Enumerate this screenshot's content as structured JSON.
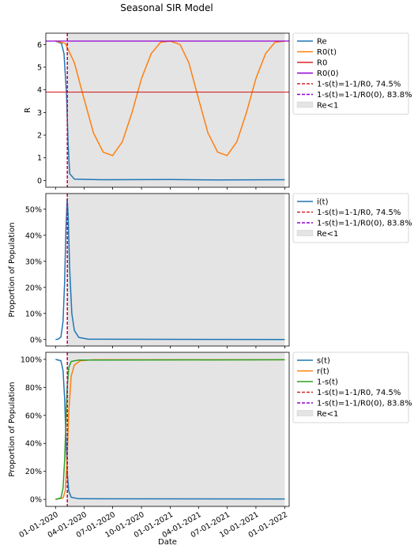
{
  "title": "Seasonal SIR Model",
  "xlabel": "Date",
  "x_ticks": [
    "01-01-2020",
    "04-01-2020",
    "07-01-2020",
    "10-01-2020",
    "01-01-2021",
    "04-01-2021",
    "07-01-2021",
    "10-01-2021",
    "01-01-2022"
  ],
  "colors": {
    "blue": "#1f77b4",
    "orange": "#ff7f0e",
    "green": "#2ca02c",
    "red": "#d62728",
    "darkred": "#8b0000",
    "purple": "#9400d3",
    "shade": "#e4e4e4"
  },
  "chart_data": [
    {
      "type": "line",
      "ylabel": "R",
      "yticks": [
        "0",
        "1",
        "2",
        "3",
        "4",
        "5",
        "6"
      ],
      "ylim": [
        -0.3,
        6.5
      ],
      "x_range": [
        "2019-12-01",
        "2022-01-15"
      ],
      "series": [
        {
          "name": "Re",
          "points": [
            [
              "2020-01-01",
              6.15
            ],
            [
              "2020-01-20",
              6.05
            ],
            [
              "2020-01-28",
              5.6
            ],
            [
              "2020-02-05",
              3.8
            ],
            [
              "2020-02-10",
              1.6
            ],
            [
              "2020-02-15",
              0.3
            ],
            [
              "2020-03-01",
              0.06
            ],
            [
              "2020-06-01",
              0.03
            ],
            [
              "2021-01-01",
              0.04
            ],
            [
              "2021-06-01",
              0.02
            ],
            [
              "2022-01-01",
              0.03
            ]
          ]
        },
        {
          "name": "R0(t)",
          "points": [
            [
              "2020-01-01",
              6.15
            ],
            [
              "2020-02-01",
              6.05
            ],
            [
              "2020-03-01",
              5.2
            ],
            [
              "2020-04-01",
              3.6
            ],
            [
              "2020-05-01",
              2.1
            ],
            [
              "2020-06-01",
              1.25
            ],
            [
              "2020-07-01",
              1.1
            ],
            [
              "2020-08-01",
              1.7
            ],
            [
              "2020-09-01",
              3.0
            ],
            [
              "2020-10-01",
              4.5
            ],
            [
              "2020-11-01",
              5.6
            ],
            [
              "2020-12-01",
              6.1
            ],
            [
              "2021-01-01",
              6.15
            ],
            [
              "2021-02-01",
              6.0
            ],
            [
              "2021-03-01",
              5.2
            ],
            [
              "2021-04-01",
              3.6
            ],
            [
              "2021-05-01",
              2.1
            ],
            [
              "2021-06-01",
              1.25
            ],
            [
              "2021-07-01",
              1.1
            ],
            [
              "2021-08-01",
              1.7
            ],
            [
              "2021-09-01",
              3.0
            ],
            [
              "2021-10-01",
              4.5
            ],
            [
              "2021-11-01",
              5.6
            ],
            [
              "2021-12-01",
              6.1
            ],
            [
              "2022-01-01",
              6.15
            ]
          ]
        },
        {
          "name": "R0",
          "hline": 3.9
        },
        {
          "name": "R0(0)",
          "hline": 6.15
        },
        {
          "name": "1-s(t)=1-1/R0, 74.5%",
          "vline": "2020-02-07"
        },
        {
          "name": "1-s(t)=1-1/R0(0), 83.8%",
          "vline": "2020-02-08"
        },
        {
          "name": "Re<1",
          "span": [
            "2020-02-08",
            "2022-01-01"
          ]
        }
      ],
      "legend_position": "outside right"
    },
    {
      "type": "line",
      "ylabel": "Proportion of Population",
      "yticks": [
        "0%",
        "10%",
        "20%",
        "30%",
        "40%",
        "50%"
      ],
      "ylim": [
        -0.025,
        0.56
      ],
      "x_range": [
        "2019-12-01",
        "2022-01-15"
      ],
      "series": [
        {
          "name": "i(t)",
          "points": [
            [
              "2020-01-01",
              0.0
            ],
            [
              "2020-01-10",
              0.002
            ],
            [
              "2020-01-18",
              0.01
            ],
            [
              "2020-01-25",
              0.07
            ],
            [
              "2020-01-30",
              0.22
            ],
            [
              "2020-02-03",
              0.42
            ],
            [
              "2020-02-07",
              0.54
            ],
            [
              "2020-02-10",
              0.48
            ],
            [
              "2020-02-15",
              0.27
            ],
            [
              "2020-02-22",
              0.1
            ],
            [
              "2020-03-01",
              0.035
            ],
            [
              "2020-03-15",
              0.008
            ],
            [
              "2020-04-15",
              0.001
            ],
            [
              "2022-01-01",
              0.0
            ]
          ]
        },
        {
          "name": "1-s(t)=1-1/R0, 74.5%",
          "vline": "2020-02-07"
        },
        {
          "name": "1-s(t)=1-1/R0(0), 83.8%",
          "vline": "2020-02-08"
        },
        {
          "name": "Re<1",
          "span": [
            "2020-02-08",
            "2022-01-01"
          ]
        }
      ],
      "legend_position": "outside right"
    },
    {
      "type": "line",
      "ylabel": "Proportion of Population",
      "yticks": [
        "0%",
        "20%",
        "40%",
        "60%",
        "80%",
        "100%"
      ],
      "ylim": [
        -0.05,
        1.05
      ],
      "x_range": [
        "2019-12-01",
        "2022-01-15"
      ],
      "series": [
        {
          "name": "s(t)",
          "points": [
            [
              "2020-01-01",
              1.0
            ],
            [
              "2020-01-18",
              0.99
            ],
            [
              "2020-01-25",
              0.92
            ],
            [
              "2020-01-30",
              0.72
            ],
            [
              "2020-02-03",
              0.45
            ],
            [
              "2020-02-07",
              0.2
            ],
            [
              "2020-02-12",
              0.06
            ],
            [
              "2020-02-20",
              0.015
            ],
            [
              "2020-03-15",
              0.005
            ],
            [
              "2022-01-01",
              0.003
            ]
          ]
        },
        {
          "name": "r(t)",
          "points": [
            [
              "2020-01-01",
              0.0
            ],
            [
              "2020-01-25",
              0.01
            ],
            [
              "2020-02-01",
              0.06
            ],
            [
              "2020-02-07",
              0.3
            ],
            [
              "2020-02-12",
              0.62
            ],
            [
              "2020-02-20",
              0.88
            ],
            [
              "2020-03-01",
              0.96
            ],
            [
              "2020-03-20",
              0.99
            ],
            [
              "2020-05-01",
              0.997
            ],
            [
              "2022-01-01",
              0.997
            ]
          ]
        },
        {
          "name": "1-s(t)",
          "points": [
            [
              "2020-01-01",
              0.0
            ],
            [
              "2020-01-18",
              0.01
            ],
            [
              "2020-01-25",
              0.08
            ],
            [
              "2020-01-30",
              0.28
            ],
            [
              "2020-02-03",
              0.55
            ],
            [
              "2020-02-07",
              0.8
            ],
            [
              "2020-02-12",
              0.94
            ],
            [
              "2020-02-20",
              0.985
            ],
            [
              "2020-03-15",
              0.995
            ],
            [
              "2022-01-01",
              0.997
            ]
          ]
        },
        {
          "name": "1-s(t)=1-1/R0, 74.5%",
          "vline": "2020-02-07"
        },
        {
          "name": "1-s(t)=1-1/R0(0), 83.8%",
          "vline": "2020-02-08"
        },
        {
          "name": "Re<1",
          "span": [
            "2020-02-08",
            "2022-01-01"
          ]
        }
      ],
      "legend_position": "outside right"
    }
  ]
}
